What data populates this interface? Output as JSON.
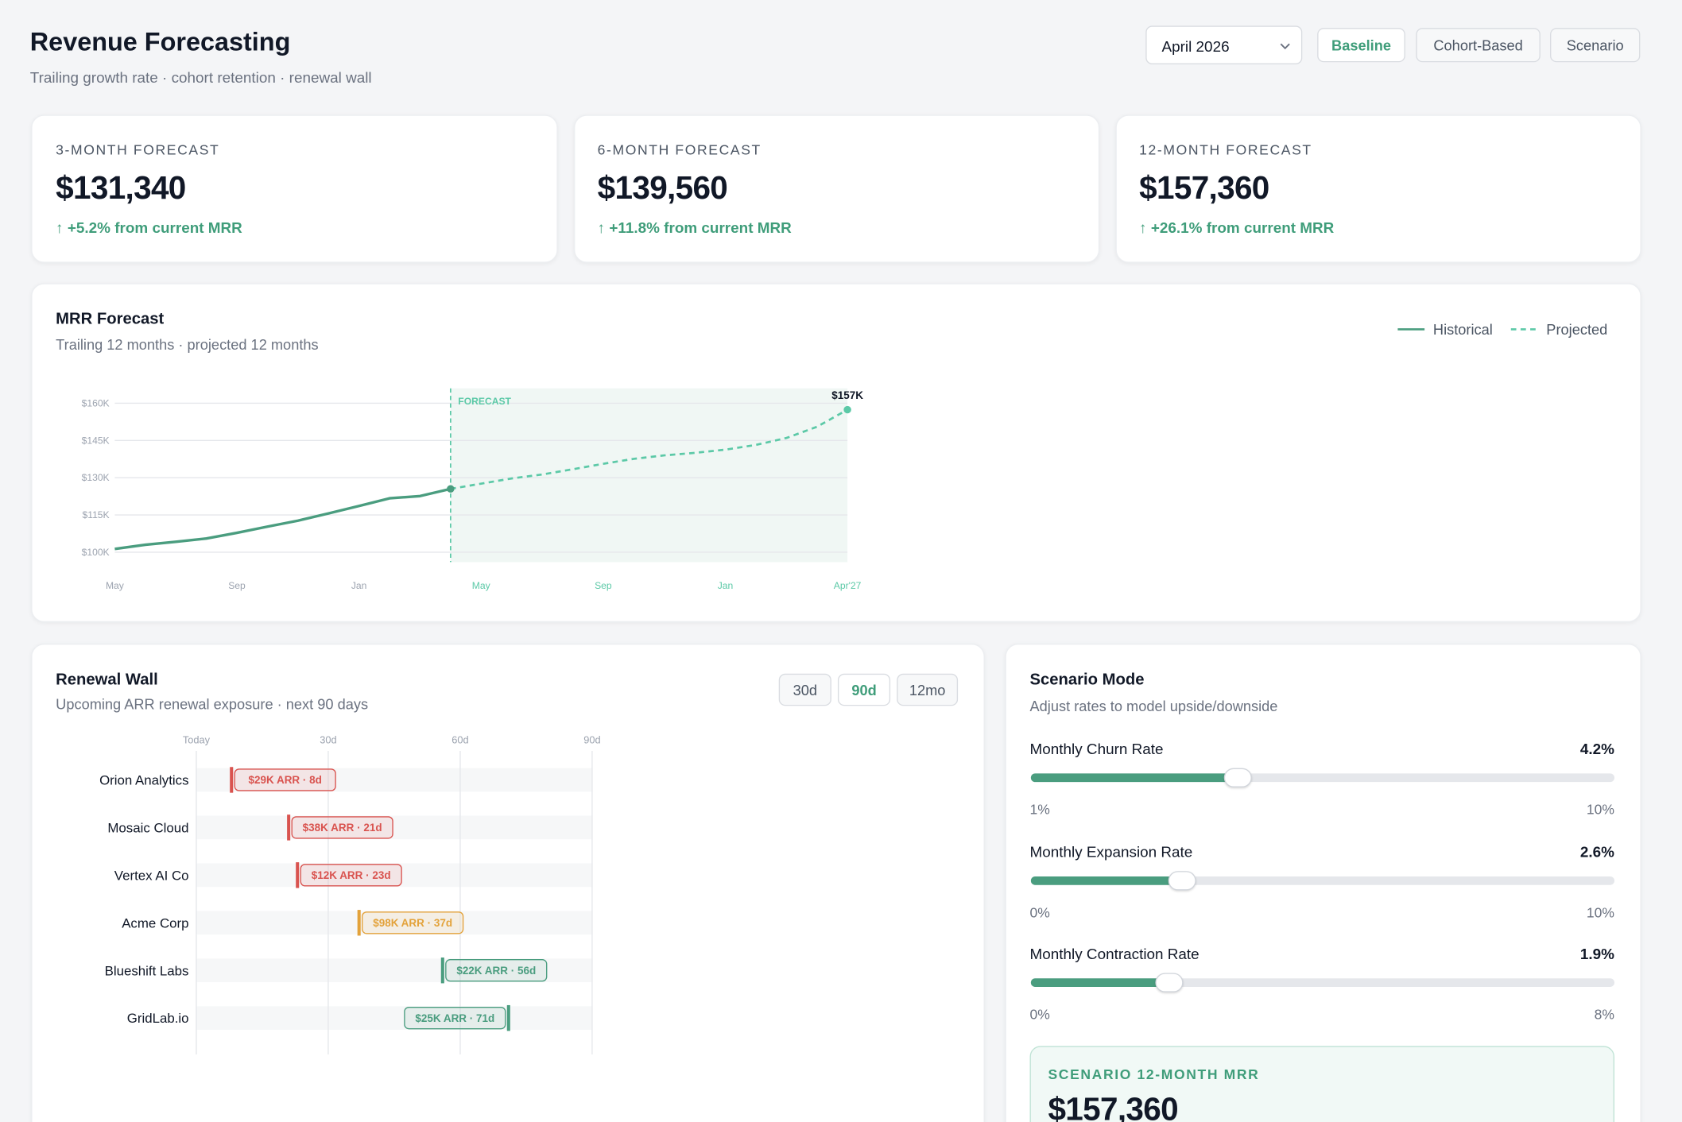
{
  "header": {
    "title": "Revenue Forecasting",
    "subtitle": "Trailing growth rate · cohort retention · renewal wall",
    "period": "April 2026",
    "modes": [
      "Baseline",
      "Cohort-Based",
      "Scenario"
    ],
    "active_mode": 0
  },
  "kpis": [
    {
      "label": "3-MONTH FORECAST",
      "value": "$131,340",
      "delta": "↑ +5.2% from current MRR"
    },
    {
      "label": "6-MONTH FORECAST",
      "value": "$139,560",
      "delta": "↑ +11.8% from current MRR"
    },
    {
      "label": "12-MONTH FORECAST",
      "value": "$157,360",
      "delta": "↑ +26.1% from current MRR"
    }
  ],
  "chart_data": [
    {
      "type": "line",
      "title": "MRR Forecast",
      "subtitle": "Trailing 12 months · projected 12 months",
      "annotation": "FORECAST",
      "legend": "top-right",
      "grid": true,
      "categories": [
        "May",
        null,
        null,
        null,
        "Sep",
        null,
        null,
        null,
        "Jan",
        null,
        null,
        null,
        "May",
        null,
        null,
        null,
        "Sep",
        null,
        null,
        null,
        "Jan",
        null,
        null,
        null,
        "Apr'27"
      ],
      "series": [
        {
          "name": "Historical",
          "color": "#4a9d7f",
          "dashed": false,
          "values": [
            101.3,
            103,
            104.2,
            105.5,
            107.8,
            110.3,
            112.7,
            115.6,
            118.6,
            121.7,
            122.6,
            125.5,
            null,
            null,
            null,
            null,
            null,
            null,
            null,
            null,
            null,
            null,
            null,
            null,
            null
          ]
        },
        {
          "name": "Projected",
          "color": "#5cc9a7",
          "dashed": true,
          "values": [
            null,
            null,
            null,
            null,
            null,
            null,
            null,
            null,
            null,
            null,
            null,
            125.5,
            127.6,
            129.7,
            131.3,
            133.4,
            135.6,
            137.6,
            139.0,
            140.0,
            141.3,
            143.2,
            146.0,
            150.5,
            157.4
          ],
          "value_labels": [
            null,
            null,
            null,
            null,
            null,
            null,
            null,
            null,
            null,
            null,
            null,
            null,
            null,
            null,
            null,
            null,
            null,
            null,
            null,
            null,
            null,
            null,
            null,
            null,
            "$157K"
          ]
        }
      ],
      "ylim": [
        96,
        166
      ],
      "yticks": [
        {
          "value": 100,
          "label": "$100K"
        },
        {
          "value": 115,
          "label": "$115K"
        },
        {
          "value": 130,
          "label": "$130K"
        },
        {
          "value": 145,
          "label": "$145K"
        },
        {
          "value": 160,
          "label": "$160K"
        }
      ]
    },
    {
      "type": "timeline",
      "title": "Renewal Wall",
      "subtitle": "Upcoming ARR renewal exposure · next 90 days",
      "ranges": [
        "30d",
        "90d",
        "12mo"
      ],
      "active_range": 1,
      "categories": [
        "Orion Analytics",
        "Mosaic Cloud",
        "Vertex AI Co",
        "Acme Corp",
        "Blueshift Labs",
        "GridLab.io"
      ],
      "values": [
        8,
        21,
        23,
        37,
        56,
        71
      ],
      "value_labels": [
        "$29K ARR · 8d",
        "$38K ARR · 21d",
        "$12K ARR · 23d",
        "$98K ARR · 37d",
        "$22K ARR · 56d",
        "$25K ARR · 71d"
      ],
      "colors": [
        "#d9534f",
        "#d9534f",
        "#d9534f",
        "#e3a23a",
        "#4a9d7f",
        "#4a9d7f"
      ],
      "xlim": [
        0,
        90
      ],
      "xticks": [
        {
          "value": 0,
          "label": "Today"
        },
        {
          "value": 30,
          "label": "30d"
        },
        {
          "value": 60,
          "label": "60d"
        },
        {
          "value": 90,
          "label": "90d"
        }
      ],
      "grid": true
    }
  ],
  "scenario": {
    "title": "Scenario Mode",
    "subtitle": "Adjust rates to model upside/downside",
    "color": "#4a9d7f",
    "sliders": [
      {
        "label": "Monthly Churn Rate",
        "value": 4.2,
        "value_label": "4.2%",
        "min": 1,
        "min_label": "1%",
        "max": 10,
        "max_label": "10%"
      },
      {
        "label": "Monthly Expansion Rate",
        "value": 2.6,
        "value_label": "2.6%",
        "min": 0,
        "min_label": "0%",
        "max": 10,
        "max_label": "10%"
      },
      {
        "label": "Monthly Contraction Rate",
        "value": 1.9,
        "value_label": "1.9%",
        "min": 0,
        "min_label": "0%",
        "max": 8,
        "max_label": "8%"
      }
    ],
    "result": {
      "label": "SCENARIO 12-MONTH MRR",
      "value": "$157,360"
    }
  }
}
